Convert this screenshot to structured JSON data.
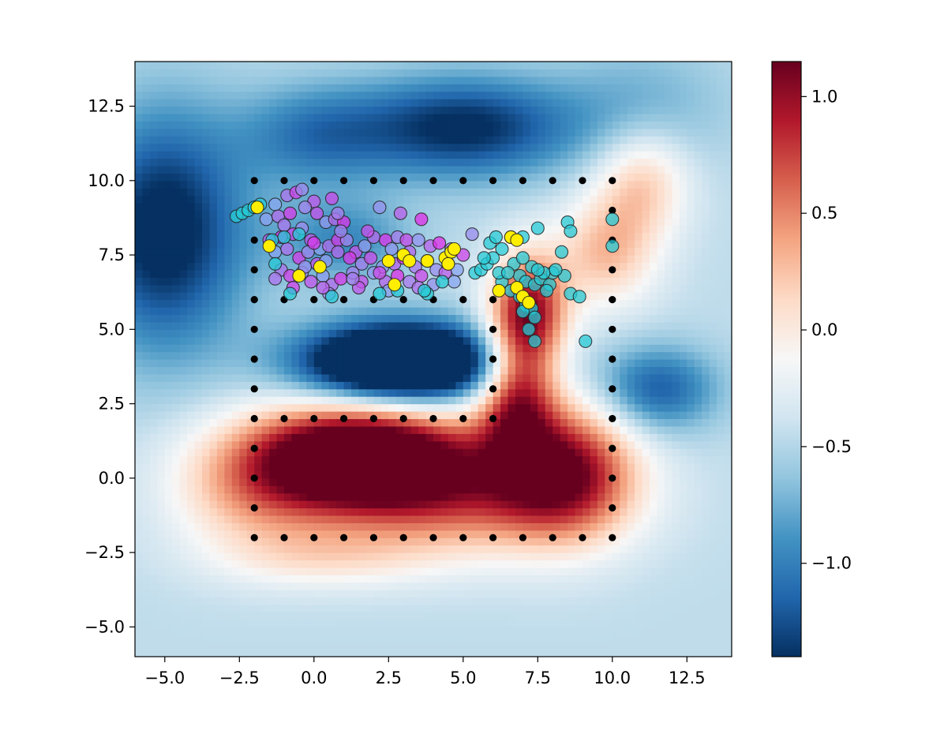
{
  "chart_data": {
    "type": "heatmap",
    "title": "",
    "xlabel": "",
    "ylabel": "",
    "xlim": [
      -6.0,
      14.0
    ],
    "ylim": [
      -6.0,
      14.0
    ],
    "x_ticks": [
      -5.0,
      -2.5,
      0.0,
      2.5,
      5.0,
      7.5,
      10.0,
      12.5
    ],
    "y_ticks": [
      -5.0,
      -2.5,
      0.0,
      2.5,
      5.0,
      7.5,
      10.0,
      12.5
    ],
    "x_tick_labels": [
      "−5.0",
      "−2.5",
      "0.0",
      "2.5",
      "5.0",
      "7.5",
      "10.0",
      "12.5"
    ],
    "y_tick_labels": [
      "−5.0",
      "−2.5",
      "0.0",
      "2.5",
      "5.0",
      "7.5",
      "10.0",
      "12.5"
    ],
    "colormap": "RdBu_r",
    "colorbar": {
      "vmin": -1.4,
      "vmax": 1.15,
      "ticks": [
        -1.0,
        -0.5,
        0.0,
        0.5,
        1.0
      ],
      "tick_labels": [
        "−1.0",
        "−0.5",
        "0.0",
        "0.5",
        "1.0"
      ]
    },
    "field_components": [
      {
        "x": 1.5,
        "y": 0.8,
        "sx": 2.6,
        "sy": 1.2,
        "a": 2.0
      },
      {
        "x": 4.5,
        "y": -0.6,
        "sx": 3.4,
        "sy": 1.4,
        "a": 1.0
      },
      {
        "x": 8.5,
        "y": 0.3,
        "sx": 1.6,
        "sy": 1.6,
        "a": 1.3
      },
      {
        "x": 6.8,
        "y": 2.8,
        "sx": 0.9,
        "sy": 1.6,
        "a": 1.2
      },
      {
        "x": 7.2,
        "y": 5.6,
        "sx": 0.9,
        "sy": 1.4,
        "a": 1.4
      },
      {
        "x": 9.8,
        "y": 7.6,
        "sx": 1.2,
        "sy": 1.3,
        "a": 0.7
      },
      {
        "x": 11.0,
        "y": 10.0,
        "sx": 1.1,
        "sy": 1.3,
        "a": 0.65
      },
      {
        "x": -2.0,
        "y": -0.5,
        "sx": 2.0,
        "sy": 1.5,
        "a": 0.6
      },
      {
        "x": 0.5,
        "y": -2.7,
        "sx": 2.5,
        "sy": 0.7,
        "a": 0.35
      },
      {
        "x": 3.0,
        "y": 3.9,
        "sx": 2.3,
        "sy": 0.9,
        "a": -2.2
      },
      {
        "x": -5.0,
        "y": 8.3,
        "sx": 1.9,
        "sy": 2.8,
        "a": -1.1
      },
      {
        "x": 5.0,
        "y": 11.8,
        "sx": 2.6,
        "sy": 1.2,
        "a": -1.0
      },
      {
        "x": 0.0,
        "y": 11.5,
        "sx": 1.8,
        "sy": 1.2,
        "a": -0.55
      },
      {
        "x": 11.5,
        "y": 3.0,
        "sx": 1.4,
        "sy": 1.0,
        "a": -0.75
      },
      {
        "x": 1.0,
        "y": 8.0,
        "sx": 1.6,
        "sy": 1.0,
        "a": -0.5
      },
      {
        "x": 11.0,
        "y": 12.5,
        "sx": 2.0,
        "sy": 1.5,
        "a": -0.3
      }
    ],
    "field_base": -0.45,
    "path_markers": {
      "color": "#000000",
      "points": [
        [
          -2,
          10
        ],
        [
          -1,
          10
        ],
        [
          0,
          10
        ],
        [
          1,
          10
        ],
        [
          2,
          10
        ],
        [
          3,
          10
        ],
        [
          4,
          10
        ],
        [
          5,
          10
        ],
        [
          6,
          10
        ],
        [
          7,
          10
        ],
        [
          8,
          10
        ],
        [
          9,
          10
        ],
        [
          10,
          10
        ],
        [
          -2,
          9
        ],
        [
          -2,
          8
        ],
        [
          -2,
          7
        ],
        [
          -2,
          6
        ],
        [
          -1,
          6
        ],
        [
          0,
          6
        ],
        [
          1,
          6
        ],
        [
          2,
          6
        ],
        [
          3,
          6
        ],
        [
          4,
          6
        ],
        [
          5,
          6
        ],
        [
          6,
          6
        ],
        [
          6,
          5
        ],
        [
          6,
          4
        ],
        [
          6,
          3
        ],
        [
          6,
          2
        ],
        [
          5,
          2
        ],
        [
          4,
          2
        ],
        [
          3,
          2
        ],
        [
          2,
          2
        ],
        [
          1,
          2
        ],
        [
          0,
          2
        ],
        [
          -1,
          2
        ],
        [
          -2,
          2
        ],
        [
          -2,
          3
        ],
        [
          -2,
          4
        ],
        [
          -2,
          5
        ],
        [
          -2,
          1
        ],
        [
          -2,
          0
        ],
        [
          -2,
          -1
        ],
        [
          -2,
          -2
        ],
        [
          -1,
          -2
        ],
        [
          0,
          -2
        ],
        [
          1,
          -2
        ],
        [
          2,
          -2
        ],
        [
          3,
          -2
        ],
        [
          4,
          -2
        ],
        [
          5,
          -2
        ],
        [
          6,
          -2
        ],
        [
          7,
          -2
        ],
        [
          8,
          -2
        ],
        [
          9,
          -2
        ],
        [
          10,
          -2
        ],
        [
          10,
          -1
        ],
        [
          10,
          0
        ],
        [
          10,
          1
        ],
        [
          10,
          2
        ],
        [
          10,
          3
        ],
        [
          10,
          4
        ],
        [
          10,
          5
        ],
        [
          10,
          6
        ],
        [
          10,
          7
        ],
        [
          10,
          8
        ],
        [
          10,
          9
        ]
      ]
    },
    "series": [
      {
        "name": "purple-magenta",
        "color_start": "#87a8f0",
        "color_end": "#e02ee8",
        "opacity": 0.75,
        "points": [
          [
            -1.3,
            9.2
          ],
          [
            -0.9,
            9.5
          ],
          [
            -0.6,
            9.6
          ],
          [
            -0.4,
            9.7
          ],
          [
            0.0,
            9.3
          ],
          [
            -1.6,
            8.7
          ],
          [
            -1.2,
            8.8
          ],
          [
            -0.8,
            8.9
          ],
          [
            -0.3,
            9.1
          ],
          [
            0.1,
            8.9
          ],
          [
            0.4,
            8.6
          ],
          [
            0.7,
            8.7
          ],
          [
            1.0,
            8.6
          ],
          [
            0.8,
            8.9
          ],
          [
            0.6,
            9.4
          ],
          [
            2.2,
            9.1
          ],
          [
            2.9,
            8.9
          ],
          [
            3.6,
            8.7
          ],
          [
            -1.0,
            8.5
          ],
          [
            -0.7,
            8.2
          ],
          [
            -0.4,
            8.4
          ],
          [
            -0.1,
            8.0
          ],
          [
            0.2,
            7.7
          ],
          [
            0.5,
            7.8
          ],
          [
            0.8,
            8.0
          ],
          [
            1.1,
            8.0
          ],
          [
            1.4,
            7.6
          ],
          [
            1.7,
            7.8
          ],
          [
            2.0,
            8.1
          ],
          [
            2.4,
            8.0
          ],
          [
            2.8,
            8.1
          ],
          [
            3.1,
            8.0
          ],
          [
            3.5,
            8.0
          ],
          [
            3.9,
            7.8
          ],
          [
            4.2,
            7.9
          ],
          [
            4.6,
            7.7
          ],
          [
            5.0,
            7.5
          ],
          [
            5.3,
            8.2
          ],
          [
            -1.5,
            8.0
          ],
          [
            -1.3,
            7.6
          ],
          [
            -0.9,
            7.7
          ],
          [
            -0.5,
            7.4
          ],
          [
            -0.2,
            7.6
          ],
          [
            0.1,
            7.2
          ],
          [
            0.4,
            7.3
          ],
          [
            0.8,
            7.6
          ],
          [
            1.2,
            7.4
          ],
          [
            1.6,
            7.2
          ],
          [
            1.9,
            7.4
          ],
          [
            2.3,
            7.1
          ],
          [
            2.7,
            7.2
          ],
          [
            3.0,
            7.4
          ],
          [
            3.4,
            7.1
          ],
          [
            3.8,
            7.3
          ],
          [
            4.1,
            7.0
          ],
          [
            4.5,
            7.2
          ],
          [
            4.8,
            7.0
          ],
          [
            -1.1,
            7.0
          ],
          [
            -0.8,
            6.8
          ],
          [
            -0.4,
            6.9
          ],
          [
            -0.1,
            6.6
          ],
          [
            0.3,
            6.8
          ],
          [
            0.6,
            6.5
          ],
          [
            0.9,
            6.7
          ],
          [
            1.3,
            6.9
          ],
          [
            1.6,
            6.6
          ],
          [
            2.0,
            6.9
          ],
          [
            2.4,
            6.6
          ],
          [
            2.8,
            6.8
          ],
          [
            3.2,
            6.6
          ],
          [
            3.6,
            6.8
          ],
          [
            4.0,
            6.5
          ],
          [
            4.4,
            6.9
          ],
          [
            4.7,
            6.6
          ],
          [
            -1.3,
            6.7
          ],
          [
            -0.7,
            6.4
          ],
          [
            0.5,
            6.2
          ],
          [
            1.5,
            6.4
          ],
          [
            2.5,
            6.3
          ],
          [
            3.5,
            6.4
          ],
          [
            0.0,
            7.9
          ],
          [
            0.9,
            8.3
          ],
          [
            1.8,
            8.3
          ],
          [
            2.6,
            7.7
          ],
          [
            3.2,
            7.6
          ],
          [
            -1.1,
            8.1
          ],
          [
            1.3,
            6.7
          ],
          [
            2.2,
            6.9
          ],
          [
            -0.3,
            7.1
          ],
          [
            0.3,
            6.4
          ]
        ]
      },
      {
        "name": "cyan",
        "color": "#26c9d6",
        "opacity": 0.75,
        "points": [
          [
            -2.6,
            8.8
          ],
          [
            -2.4,
            8.9
          ],
          [
            -2.2,
            9.0
          ],
          [
            -2.0,
            9.1
          ],
          [
            -1.8,
            9.2
          ],
          [
            -1.4,
            8.0
          ],
          [
            -1.0,
            8.1
          ],
          [
            -0.5,
            8.2
          ],
          [
            -1.3,
            7.2
          ],
          [
            -0.8,
            6.2
          ],
          [
            0.6,
            6.1
          ],
          [
            2.2,
            6.2
          ],
          [
            2.8,
            6.3
          ],
          [
            3.8,
            6.2
          ],
          [
            4.3,
            6.6
          ],
          [
            5.4,
            6.9
          ],
          [
            5.6,
            7.0
          ],
          [
            5.8,
            7.2
          ],
          [
            6.0,
            7.4
          ],
          [
            6.3,
            7.7
          ],
          [
            5.7,
            7.4
          ],
          [
            5.9,
            7.9
          ],
          [
            6.1,
            8.1
          ],
          [
            6.6,
            8.1
          ],
          [
            7.0,
            8.1
          ],
          [
            7.5,
            8.4
          ],
          [
            8.5,
            8.6
          ],
          [
            8.6,
            8.3
          ],
          [
            10.0,
            8.7
          ],
          [
            10.0,
            7.8
          ],
          [
            6.7,
            7.2
          ],
          [
            7.0,
            7.4
          ],
          [
            7.3,
            7.1
          ],
          [
            6.9,
            6.8
          ],
          [
            7.1,
            6.6
          ],
          [
            7.4,
            6.5
          ],
          [
            7.6,
            6.7
          ],
          [
            7.9,
            6.5
          ],
          [
            8.0,
            6.9
          ],
          [
            8.4,
            6.8
          ],
          [
            8.3,
            7.6
          ],
          [
            8.6,
            6.2
          ],
          [
            8.9,
            6.1
          ],
          [
            7.8,
            6.3
          ],
          [
            6.3,
            6.6
          ],
          [
            6.6,
            6.3
          ],
          [
            6.9,
            6.1
          ],
          [
            7.1,
            5.8
          ],
          [
            7.3,
            5.7
          ],
          [
            7.4,
            5.4
          ],
          [
            7.2,
            5.0
          ],
          [
            7.0,
            5.6
          ],
          [
            7.4,
            4.6
          ],
          [
            9.1,
            4.6
          ],
          [
            6.2,
            6.9
          ],
          [
            7.7,
            6.9
          ],
          [
            8.1,
            7.0
          ],
          [
            6.5,
            6.9
          ],
          [
            7.5,
            7.0
          ],
          [
            3.7,
            6.3
          ]
        ]
      },
      {
        "name": "yellow",
        "color": "#ffee00",
        "opacity": 1.0,
        "points": [
          [
            -1.9,
            9.1
          ],
          [
            -1.5,
            7.8
          ],
          [
            -0.5,
            6.8
          ],
          [
            0.2,
            7.1
          ],
          [
            2.5,
            7.3
          ],
          [
            3.0,
            7.5
          ],
          [
            3.2,
            7.3
          ],
          [
            3.8,
            7.3
          ],
          [
            4.4,
            7.4
          ],
          [
            4.6,
            7.6
          ],
          [
            4.7,
            7.7
          ],
          [
            4.5,
            7.2
          ],
          [
            2.7,
            6.5
          ],
          [
            6.2,
            6.3
          ],
          [
            6.6,
            8.1
          ],
          [
            6.8,
            8.0
          ],
          [
            6.8,
            6.4
          ],
          [
            7.0,
            6.1
          ],
          [
            7.2,
            5.9
          ]
        ]
      }
    ]
  }
}
